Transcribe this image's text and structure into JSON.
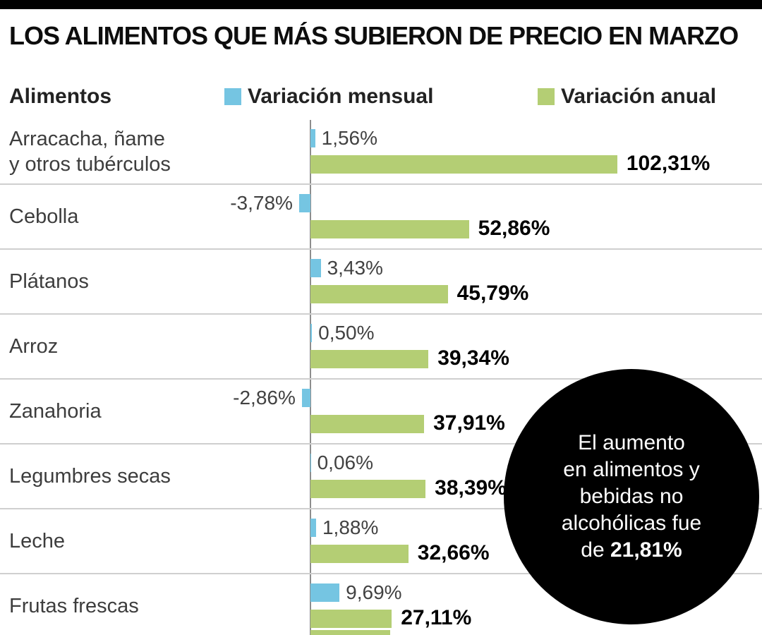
{
  "title": "LOS ALIMENTOS QUE MÁS SUBIERON DE PRECIO EN MARZO",
  "legend": {
    "column_header": "Alimentos",
    "monthly_label": "Variación mensual",
    "annual_label": "Variación anual"
  },
  "colors": {
    "monthly": "#75c5e2",
    "annual": "#b4ce74",
    "callout_bg": "#000000",
    "top_bar": "#000000"
  },
  "callout": {
    "lines": [
      "El aumento",
      "en alimentos y",
      "bebidas no",
      "alcohólicas fue"
    ],
    "last_line_prefix": "de ",
    "highlight": "21,81%"
  },
  "chart_data": {
    "type": "bar",
    "orientation": "horizontal",
    "title": "LOS ALIMENTOS QUE MÁS SUBIERON DE PRECIO EN MARZO",
    "unit": "%",
    "categories": [
      "Arracacha, ñame y otros tubérculos",
      "Cebolla",
      "Plátanos",
      "Arroz",
      "Zanahoria",
      "Legumbres secas",
      "Leche",
      "Frutas frescas"
    ],
    "category_display_lines": [
      [
        "Arracacha, ñame",
        "y otros tubérculos"
      ],
      [
        "Cebolla"
      ],
      [
        "Plátanos"
      ],
      [
        "Arroz"
      ],
      [
        "Zanahoria"
      ],
      [
        "Legumbres secas"
      ],
      [
        "Leche"
      ],
      [
        "Frutas frescas"
      ]
    ],
    "series": [
      {
        "name": "Variación mensual",
        "values": [
          1.56,
          -3.78,
          3.43,
          0.5,
          -2.86,
          0.06,
          1.88,
          9.69
        ]
      },
      {
        "name": "Variación anual",
        "values": [
          102.31,
          52.86,
          45.79,
          39.34,
          37.91,
          38.39,
          32.66,
          27.11
        ]
      }
    ],
    "value_labels_monthly": [
      "1,56%",
      "-3,78%",
      "3,43%",
      "0,50%",
      "-2,86%",
      "0,06%",
      "1,88%",
      "9,69%"
    ],
    "value_labels_annual": [
      "102,31%",
      "52,86%",
      "45,79%",
      "39,34%",
      "37,91%",
      "38,39%",
      "32,66%",
      "27,11%"
    ],
    "annotation": "El aumento en alimentos y bebidas no alcohólicas fue de 21,81%",
    "legend_position": "top",
    "axis_at_zero": true,
    "next_row_partially_visible": true
  }
}
